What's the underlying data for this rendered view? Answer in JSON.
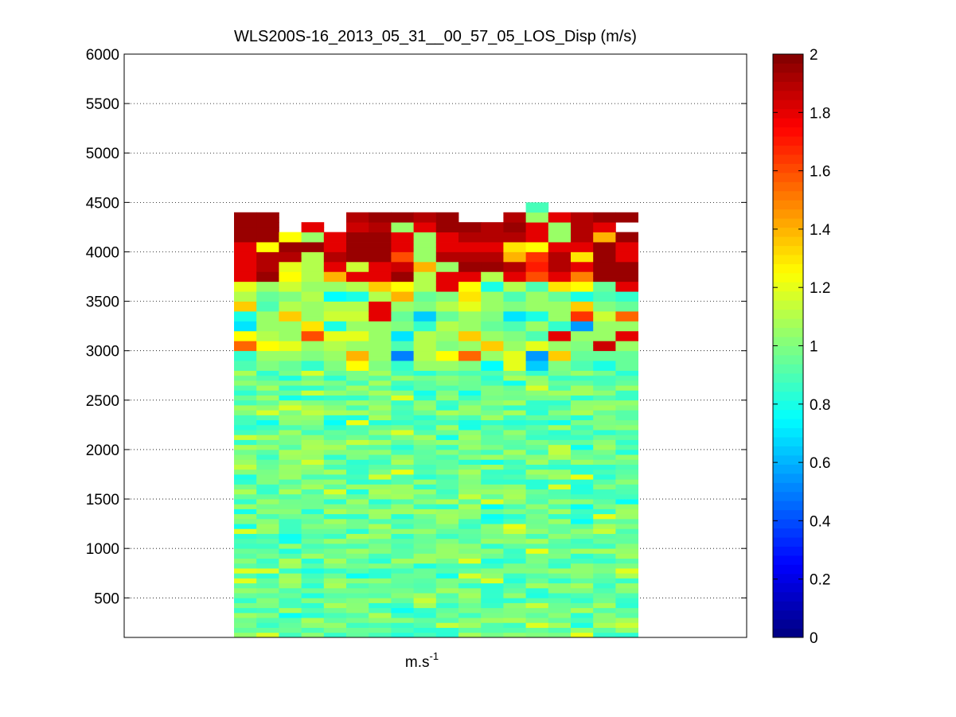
{
  "chart_data": {
    "type": "heatmap",
    "title": "WLS200S-16_2013_05_31__00_57_05_LOS_Disp (m/s)",
    "xlabel_base": "m.s",
    "xlabel_exp": "-1",
    "ylabel": "",
    "ylim": [
      100,
      6000
    ],
    "yticks": [
      500,
      1000,
      1500,
      2000,
      2500,
      3000,
      3500,
      4000,
      4500,
      5000,
      5500,
      6000
    ],
    "ytick_labels": [
      "500",
      "1000",
      "1500",
      "2000",
      "2500",
      "3000",
      "3500",
      "4000",
      "4500",
      "5000",
      "5500",
      "6000"
    ],
    "grid": "y-dotted",
    "colormap": "jet",
    "clim": [
      0,
      2
    ],
    "colorbar_ticks": [
      0,
      0.2,
      0.4,
      0.6,
      0.8,
      1,
      1.2,
      1.4,
      1.6,
      1.8,
      2
    ],
    "colorbar_tick_labels": [
      "0",
      "0.2",
      "0.4",
      "0.6",
      "0.8",
      "1",
      "1.2",
      "1.4",
      "1.6",
      "1.8",
      "2"
    ],
    "n_columns": 18,
    "row_height_m": 50,
    "rows_start_m": 100,
    "column_top_m": [
      4400,
      4400,
      4300,
      4400,
      4300,
      4400,
      4400,
      4400,
      4400,
      4400,
      4400,
      4300,
      4400,
      4500,
      4400,
      4400,
      4400,
      4400
    ],
    "values_above_3000_m": [
      {
        "range_m": [
          4300,
          4400
        ],
        "values": [
          1.95,
          1.95,
          1.85,
          null,
          1.8,
          1.9,
          1.95,
          1.95,
          1.9,
          1.95,
          null,
          null,
          1.9,
          1.05,
          1.8,
          1.9,
          1.95,
          1.95
        ]
      },
      {
        "range_m": [
          4200,
          4300
        ],
        "values": [
          1.95,
          1.95,
          null,
          1.8,
          null,
          1.85,
          1.9,
          1.05,
          1.8,
          1.95,
          1.95,
          1.9,
          1.95,
          1.8,
          1.05,
          1.9,
          1.8,
          null
        ]
      },
      {
        "range_m": [
          4100,
          4200
        ],
        "values": [
          1.95,
          1.95,
          1.25,
          1.05,
          1.8,
          1.95,
          1.95,
          1.8,
          1.05,
          1.8,
          1.9,
          1.9,
          1.9,
          1.8,
          1.05,
          1.9,
          1.4,
          1.95
        ]
      },
      {
        "range_m": [
          4000,
          4100
        ],
        "values": [
          1.8,
          1.25,
          1.95,
          1.95,
          1.8,
          1.95,
          1.95,
          1.8,
          1.05,
          1.8,
          1.8,
          1.8,
          1.3,
          1.25,
          1.8,
          1.8,
          1.95,
          1.8
        ]
      },
      {
        "range_m": [
          3900,
          4000
        ],
        "values": [
          1.8,
          1.9,
          1.9,
          1.1,
          1.9,
          1.95,
          1.95,
          1.6,
          1.05,
          1.9,
          1.9,
          1.9,
          1.4,
          1.65,
          1.9,
          1.3,
          1.95,
          1.8
        ]
      },
      {
        "range_m": [
          3800,
          3900
        ],
        "values": [
          1.8,
          1.9,
          1.2,
          1.1,
          1.8,
          1.15,
          1.8,
          1.85,
          1.4,
          1.05,
          1.95,
          1.95,
          1.9,
          1.7,
          1.9,
          1.8,
          1.95,
          1.95
        ]
      },
      {
        "range_m": [
          3700,
          3800
        ],
        "values": [
          1.8,
          1.95,
          1.25,
          1.1,
          1.4,
          1.8,
          1.8,
          1.95,
          1.1,
          1.8,
          1.8,
          1.1,
          1.8,
          1.6,
          1.8,
          1.5,
          1.95,
          1.95
        ]
      },
      {
        "range_m": [
          3600,
          3700
        ],
        "values": [
          1.2,
          1.05,
          1.15,
          1.05,
          1.05,
          1.1,
          1.35,
          1.25,
          1.1,
          1.8,
          1.25,
          0.8,
          1.1,
          0.9,
          1.3,
          1.25,
          0.95,
          1.8
        ]
      },
      {
        "range_m": [
          3500,
          3600
        ],
        "values": [
          1.1,
          0.95,
          1.0,
          1.1,
          0.75,
          0.8,
          1.1,
          1.4,
          0.95,
          1.0,
          1.3,
          1.05,
          0.9,
          1.05,
          0.95,
          0.8,
          0.9,
          0.85
        ]
      },
      {
        "range_m": [
          3400,
          3500
        ],
        "values": [
          1.35,
          0.9,
          1.1,
          1.05,
          1.1,
          1.1,
          1.8,
          1.05,
          1.0,
          1.1,
          1.2,
          1.05,
          1.0,
          1.05,
          1.05,
          1.35,
          1.0,
          0.95
        ]
      },
      {
        "range_m": [
          3300,
          3400
        ],
        "values": [
          0.8,
          1.05,
          1.35,
          1.05,
          1.15,
          1.15,
          1.8,
          0.95,
          0.65,
          0.95,
          1.05,
          1.0,
          0.7,
          0.8,
          1.05,
          1.65,
          1.15,
          1.55
        ]
      },
      {
        "range_m": [
          3200,
          3300
        ],
        "values": [
          0.7,
          1.05,
          1.05,
          1.3,
          0.8,
          1.05,
          1.05,
          1.0,
          0.85,
          1.1,
          1.05,
          0.95,
          0.9,
          1.05,
          0.85,
          0.55,
          1.05,
          1.05
        ]
      },
      {
        "range_m": [
          3100,
          3200
        ],
        "values": [
          1.25,
          1.1,
          1.05,
          1.6,
          1.2,
          1.2,
          1.05,
          0.7,
          1.1,
          1.05,
          1.35,
          1.05,
          1.0,
          0.9,
          1.8,
          1.05,
          1.05,
          1.8
        ]
      },
      {
        "range_m": [
          3000,
          3100
        ],
        "values": [
          1.55,
          1.25,
          1.2,
          1.05,
          1.1,
          1.05,
          1.05,
          0.9,
          1.1,
          1.0,
          1.05,
          1.35,
          1.05,
          1.2,
          1.05,
          1.0,
          1.85,
          1.05
        ]
      },
      {
        "range_m": [
          2900,
          3000
        ],
        "values": [
          0.85,
          1.05,
          1.05,
          1.0,
          1.05,
          1.4,
          1.05,
          0.5,
          1.1,
          1.25,
          1.55,
          1.05,
          1.2,
          0.55,
          1.35,
          0.95,
          0.95,
          0.95
        ]
      },
      {
        "range_m": [
          2800,
          2900
        ],
        "values": [
          0.9,
          1.0,
          0.95,
          0.85,
          1.0,
          1.25,
          1.0,
          0.85,
          1.05,
          1.05,
          1.0,
          0.75,
          1.2,
          0.65,
          1.0,
          0.9,
          0.8,
          0.95
        ]
      }
    ],
    "values_below_2800_m": "approximately 0.85-1.1 (cyan-green) with sparse 0.75 and 1.2 cells"
  }
}
